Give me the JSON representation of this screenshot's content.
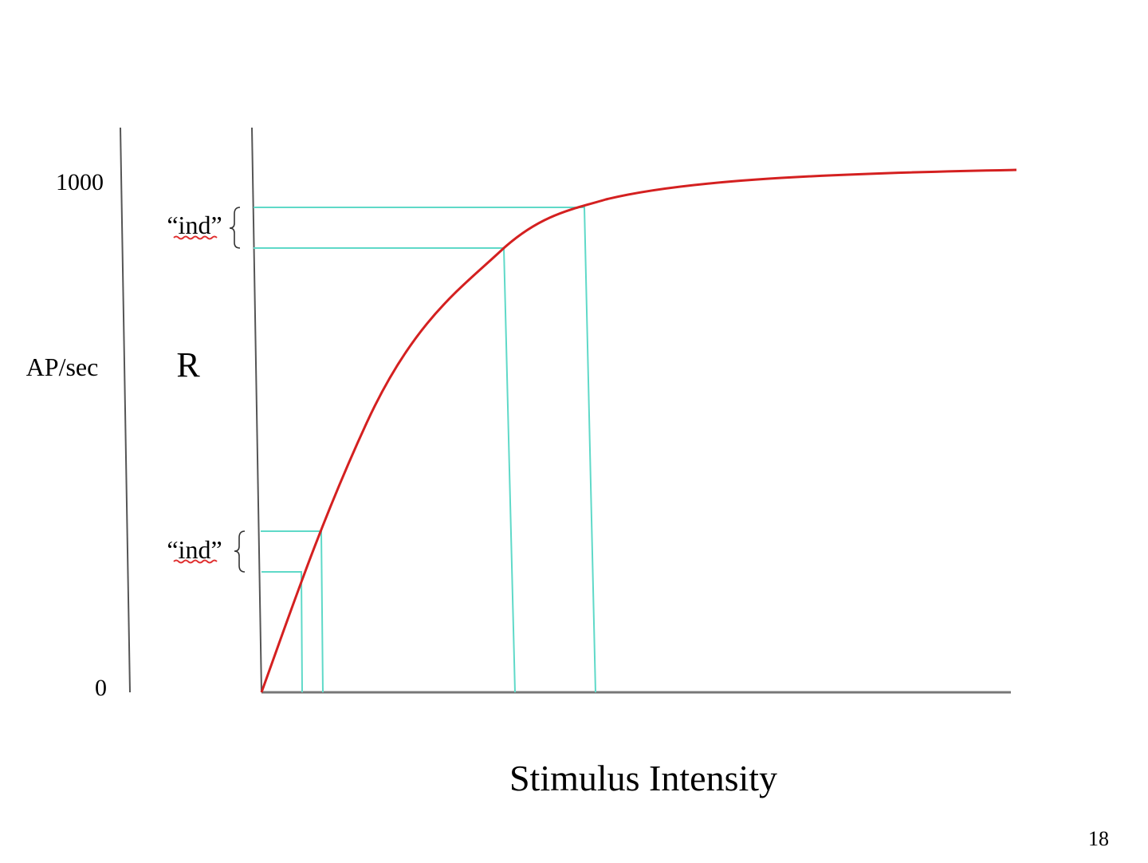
{
  "labels": {
    "ap_axis_top": "1000",
    "ap_axis_bottom": "0",
    "ap_axis_label": "AP/sec",
    "r_axis_label": "R",
    "x_axis_label": "Stimulus Intensity",
    "ind_upper": "“ind”",
    "ind_lower": "“ind”",
    "page_number": "18"
  },
  "colors": {
    "curve": "#d42020",
    "guides": "#5fd9c8",
    "axes": "#555555",
    "spellcheck_underline": "#e03030"
  },
  "chart_data": {
    "type": "line",
    "title": "",
    "xlabel": "Stimulus Intensity",
    "ylabel": "AP/sec",
    "ylim": [
      0,
      1000
    ],
    "y_ticks": [
      0,
      1000
    ],
    "grid": false,
    "series": [
      {
        "values_shape": "saturating curve from origin",
        "x": [
          0,
          1,
          2,
          3,
          4,
          5,
          6,
          7,
          8,
          9,
          10
        ],
        "y": [
          0,
          380,
          620,
          780,
          880,
          935,
          965,
          980,
          990,
          995,
          998
        ]
      }
    ],
    "annotations": [
      {
        "text": "“ind”",
        "note": "equal response step at high intensity"
      },
      {
        "text": "“ind”",
        "note": "equal response step at low intensity"
      }
    ]
  }
}
